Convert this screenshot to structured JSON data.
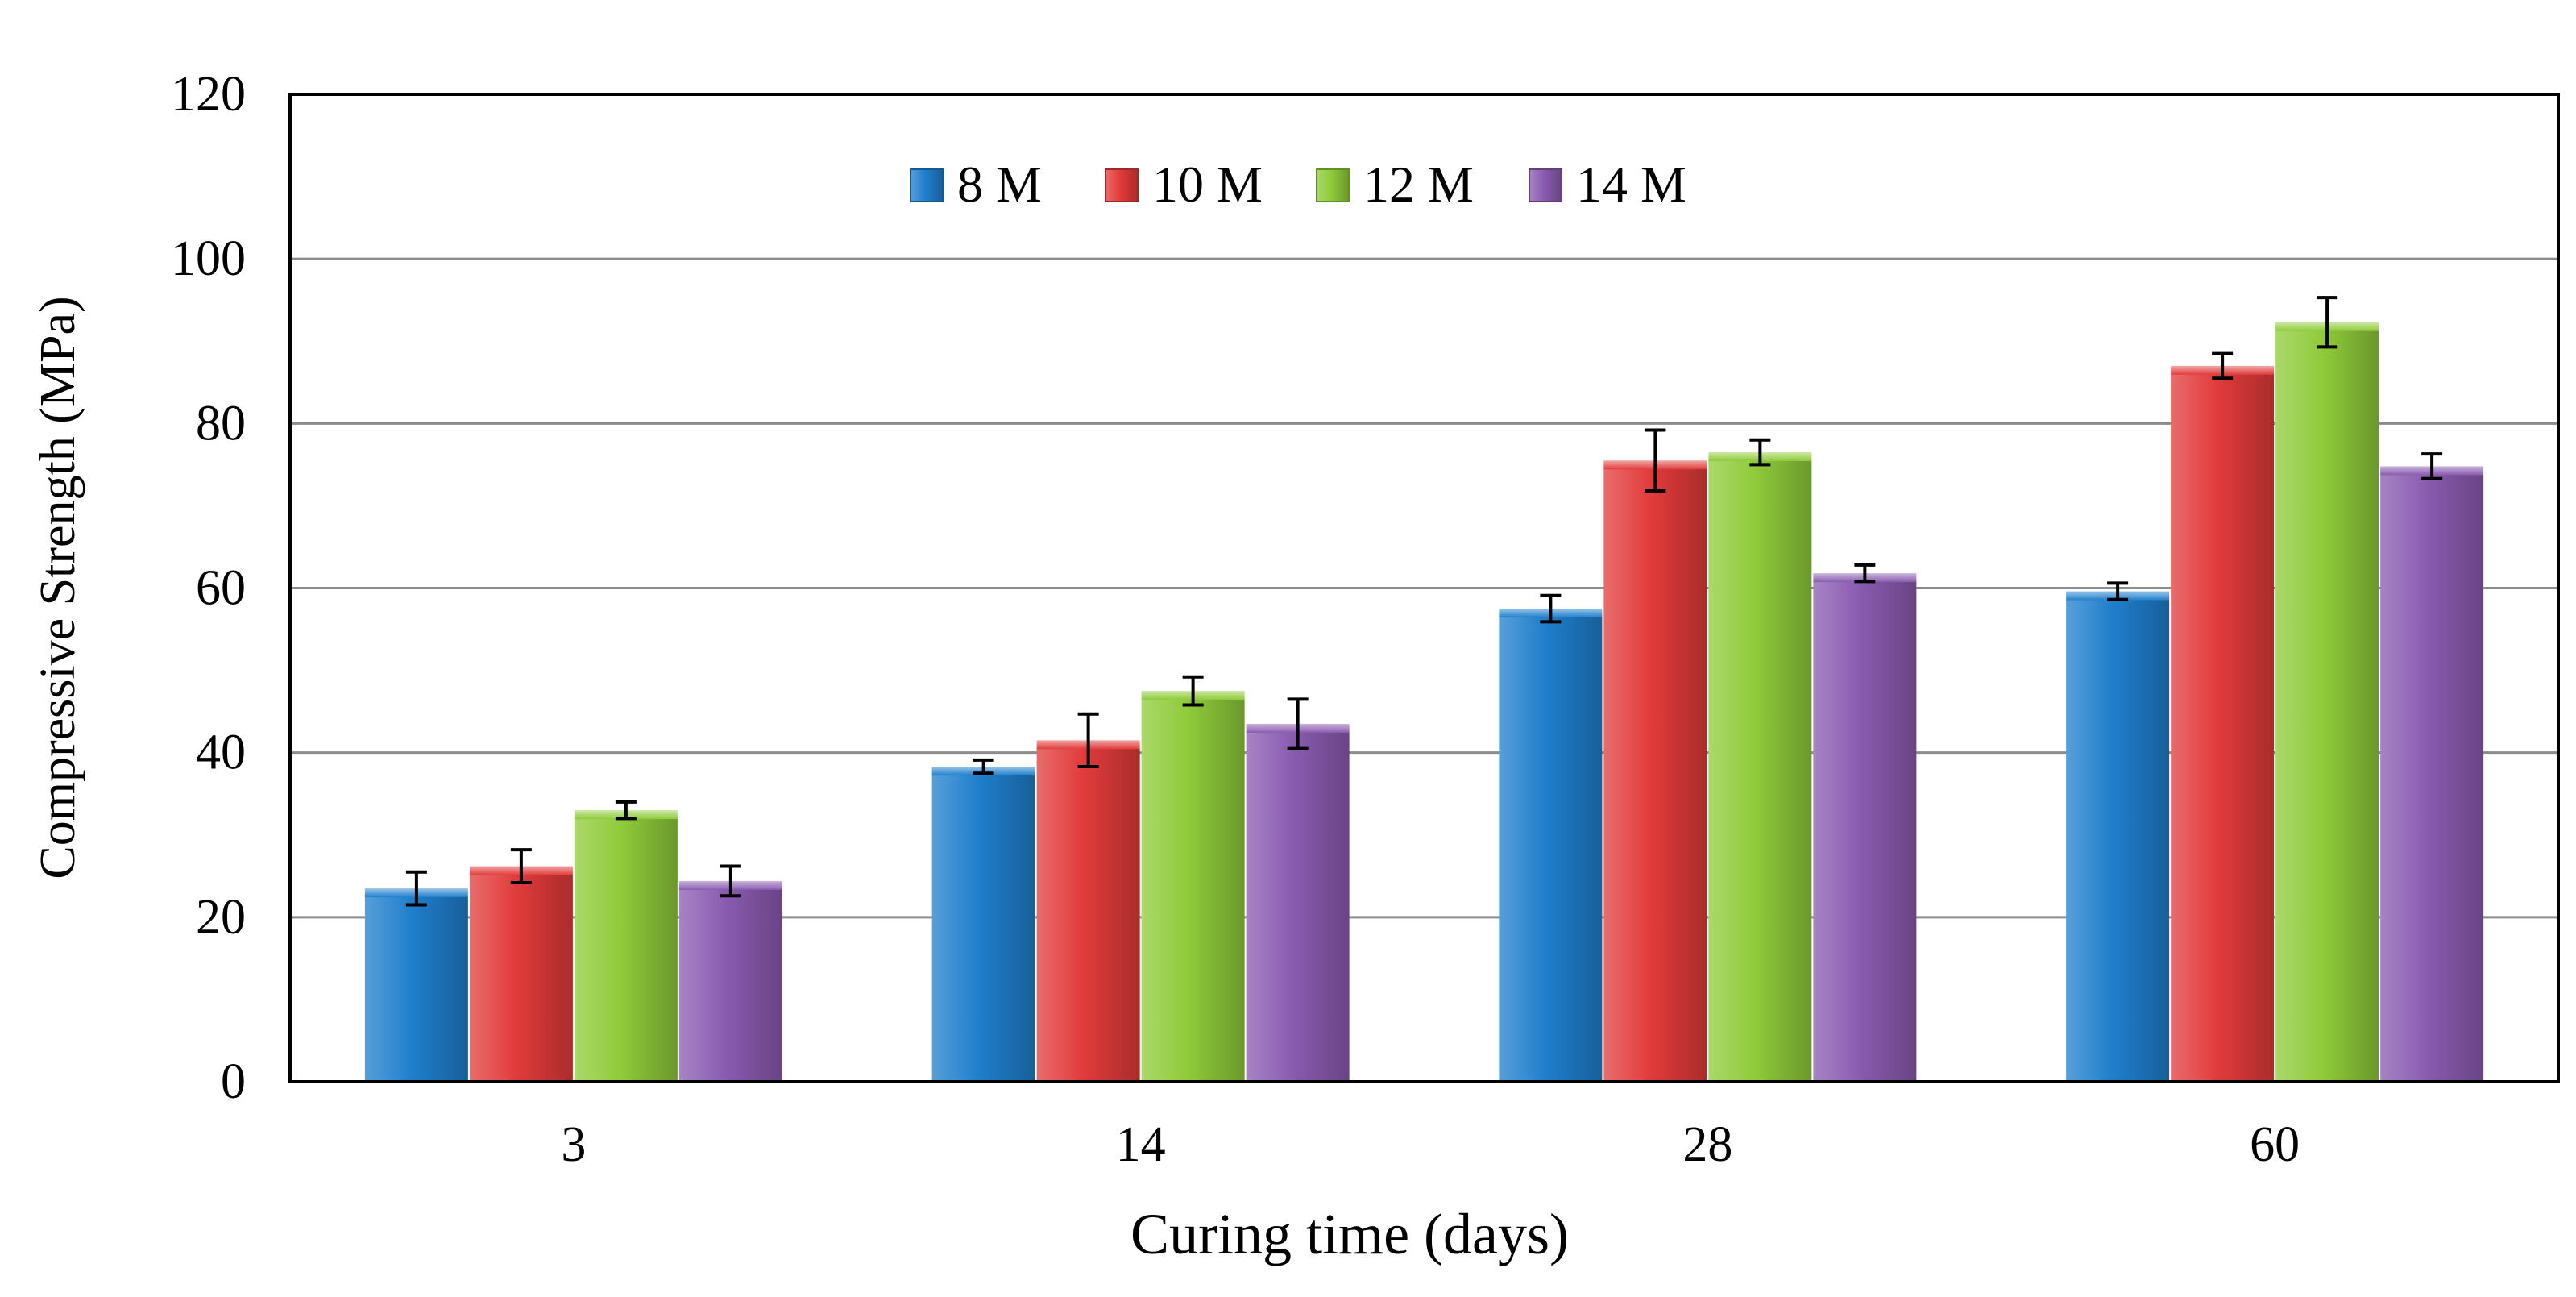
{
  "chart_data": {
    "type": "bar",
    "title": "",
    "xlabel": "Curing time (days)",
    "ylabel": "Compressive Strength (MPa)",
    "ylim": [
      0,
      120
    ],
    "yticks": [
      0,
      20,
      40,
      60,
      80,
      100,
      120
    ],
    "grid": true,
    "legend_position": "top-center",
    "categories": [
      "3",
      "14",
      "28",
      "60"
    ],
    "series": [
      {
        "name": "8 M",
        "color": "#1f7fcc",
        "values": [
          23.5,
          38.3,
          57.5,
          59.6
        ],
        "errors": [
          2.0,
          0.8,
          1.6,
          1.0
        ]
      },
      {
        "name": "10 M",
        "color": "#e23b3b",
        "values": [
          26.2,
          41.5,
          75.5,
          87.0
        ],
        "errors": [
          2.0,
          3.2,
          3.7,
          1.5
        ]
      },
      {
        "name": "12 M",
        "color": "#8fcb3a",
        "values": [
          33.0,
          47.5,
          76.5,
          92.3
        ],
        "errors": [
          1.0,
          1.7,
          1.5,
          3.0
        ]
      },
      {
        "name": "14 M",
        "color": "#8a5bb0",
        "values": [
          24.4,
          43.5,
          61.8,
          74.8
        ],
        "errors": [
          1.8,
          3.0,
          1.0,
          1.5
        ]
      }
    ]
  }
}
